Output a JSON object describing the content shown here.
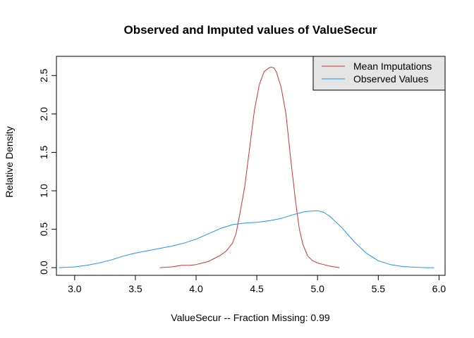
{
  "chart_data": {
    "type": "line",
    "title": "Observed and Imputed values of ValueSecur",
    "xlabel": "ValueSecur  --  Fraction Missing: 0.99",
    "ylabel": "Relative Density",
    "xlim": [
      2.85,
      6.05
    ],
    "ylim": [
      -0.1,
      2.75
    ],
    "x_ticks": [
      3.0,
      3.5,
      4.0,
      4.5,
      5.0,
      5.5,
      6.0
    ],
    "x_tick_labels": [
      "3.0",
      "3.5",
      "4.0",
      "4.5",
      "5.0",
      "5.5",
      "6.0"
    ],
    "y_ticks": [
      0.0,
      0.5,
      1.0,
      1.5,
      2.0,
      2.5
    ],
    "y_tick_labels": [
      "0.0",
      "0.5",
      "1.0",
      "1.5",
      "2.0",
      "2.5"
    ],
    "grid": false,
    "legend_position": "top-right",
    "series": [
      {
        "name": "Mean Imputations",
        "color": "#cd3333",
        "x": [
          3.7,
          3.8,
          3.88,
          3.95,
          4.0,
          4.05,
          4.1,
          4.15,
          4.2,
          4.25,
          4.3,
          4.33,
          4.36,
          4.4,
          4.44,
          4.48,
          4.52,
          4.56,
          4.6,
          4.62,
          4.64,
          4.66,
          4.7,
          4.74,
          4.78,
          4.82,
          4.85,
          4.88,
          4.92,
          4.96,
          5.0,
          5.05,
          5.1,
          5.18
        ],
        "values": [
          0.0,
          0.01,
          0.03,
          0.03,
          0.04,
          0.06,
          0.08,
          0.12,
          0.16,
          0.22,
          0.32,
          0.45,
          0.7,
          1.05,
          1.55,
          2.05,
          2.38,
          2.55,
          2.6,
          2.61,
          2.6,
          2.55,
          2.35,
          2.0,
          1.4,
          0.85,
          0.5,
          0.3,
          0.15,
          0.09,
          0.06,
          0.04,
          0.02,
          0.0
        ]
      },
      {
        "name": "Observed Values",
        "color": "#1e90ff",
        "x": [
          2.87,
          3.0,
          3.1,
          3.2,
          3.3,
          3.4,
          3.5,
          3.6,
          3.7,
          3.8,
          3.9,
          4.0,
          4.1,
          4.2,
          4.3,
          4.4,
          4.5,
          4.6,
          4.7,
          4.8,
          4.9,
          5.0,
          5.05,
          5.1,
          5.2,
          5.3,
          5.4,
          5.5,
          5.6,
          5.7,
          5.8,
          5.9,
          5.96
        ],
        "values": [
          0.0,
          0.01,
          0.03,
          0.06,
          0.1,
          0.15,
          0.19,
          0.22,
          0.25,
          0.28,
          0.32,
          0.37,
          0.44,
          0.51,
          0.56,
          0.58,
          0.59,
          0.61,
          0.64,
          0.69,
          0.73,
          0.74,
          0.72,
          0.67,
          0.52,
          0.34,
          0.19,
          0.09,
          0.04,
          0.015,
          0.005,
          0.0,
          0.0
        ]
      }
    ]
  }
}
